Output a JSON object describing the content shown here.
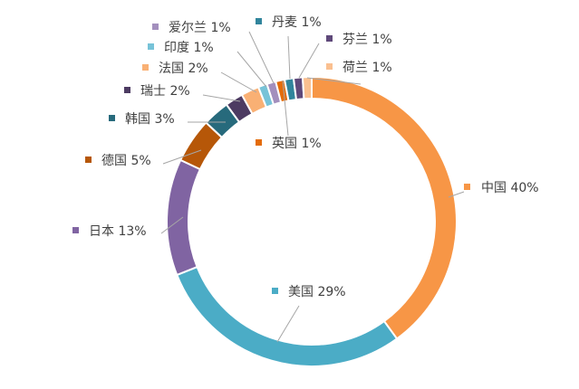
{
  "chart_data": {
    "type": "pie",
    "variant": "donut",
    "legend": "none",
    "unit": "%",
    "slices": [
      {
        "label": "中国",
        "value": 40,
        "color": "#f79646"
      },
      {
        "label": "美国",
        "value": 29,
        "color": "#4bacc6"
      },
      {
        "label": "日本",
        "value": 13,
        "color": "#8064a2"
      },
      {
        "label": "德国",
        "value": 5,
        "color": "#b65708"
      },
      {
        "label": "韩国",
        "value": 3,
        "color": "#276a7c"
      },
      {
        "label": "瑞士",
        "value": 2,
        "color": "#4d3b62"
      },
      {
        "label": "法国",
        "value": 2,
        "color": "#f9b074"
      },
      {
        "label": "印度",
        "value": 1,
        "color": "#77c3d8"
      },
      {
        "label": "爱尔兰",
        "value": 1,
        "color": "#a38fbd"
      },
      {
        "label": "英国",
        "value": 1,
        "color": "#e46c0a"
      },
      {
        "label": "丹麦",
        "value": 1,
        "color": "#31859c"
      },
      {
        "label": "芬兰",
        "value": 1,
        "color": "#5f497a"
      },
      {
        "label": "荷兰",
        "value": 1,
        "color": "#fac090"
      }
    ]
  }
}
